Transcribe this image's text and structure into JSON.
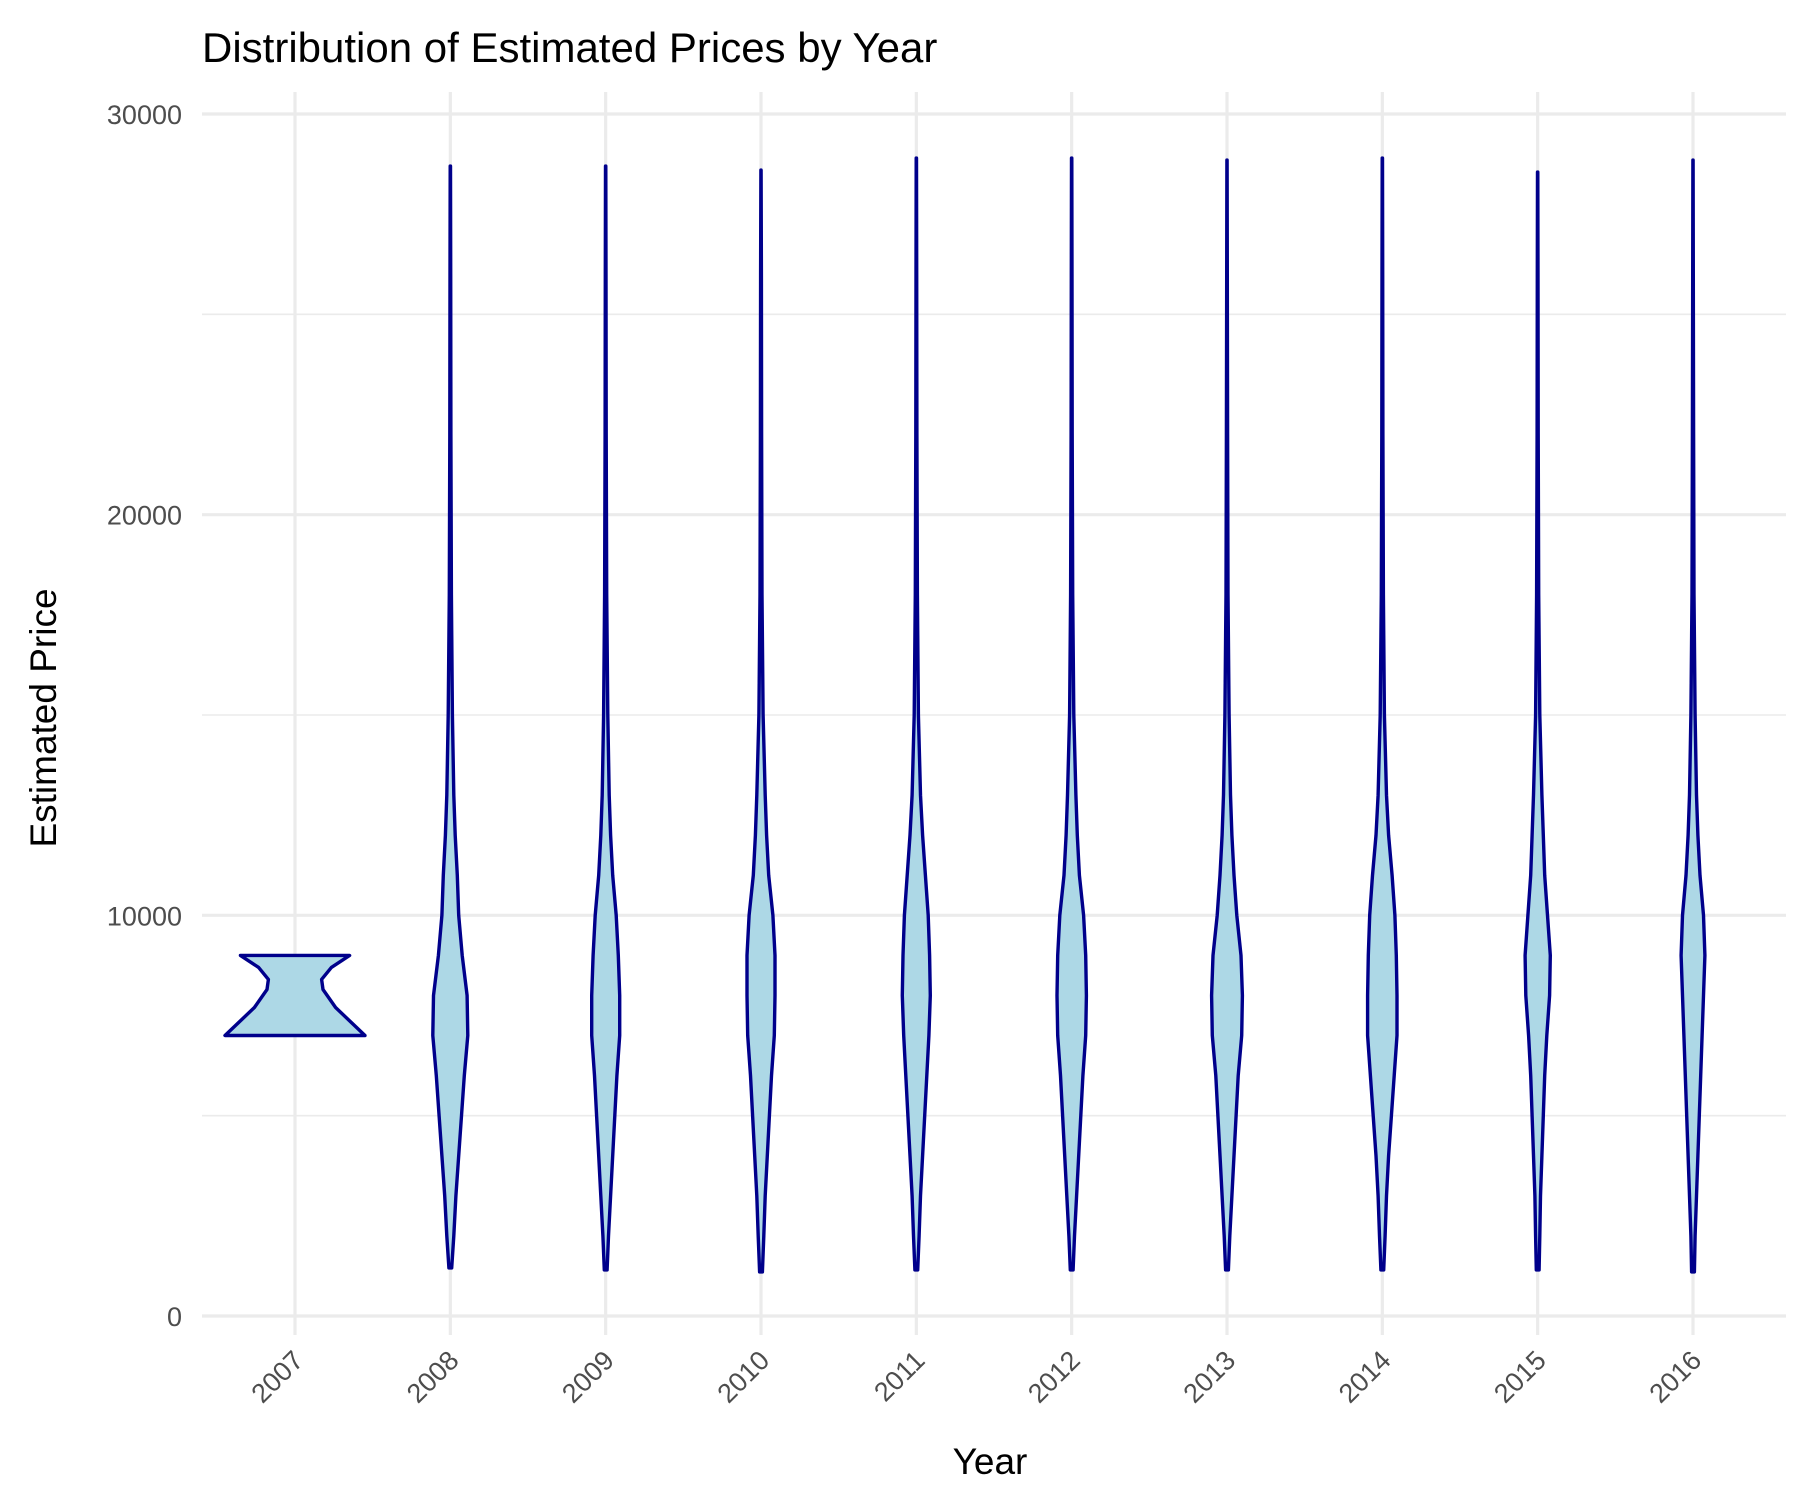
{
  "chart_data": {
    "type": "violin",
    "title": "Distribution of Estimated Prices by Year",
    "xlabel": "Year",
    "ylabel": "Estimated Price",
    "categories": [
      "2007",
      "2008",
      "2009",
      "2010",
      "2011",
      "2012",
      "2013",
      "2014",
      "2015",
      "2016"
    ],
    "ylim": [
      -1000,
      30500
    ],
    "yticks": [
      0,
      10000,
      20000,
      30000
    ],
    "ytick_labels": [
      "0",
      "10000",
      "20000",
      "30000"
    ],
    "grid": true,
    "colors": {
      "fill": "#add8e6",
      "outline": "#00008b"
    },
    "violins": [
      {
        "year": "2007",
        "min": 7000,
        "max": 9000,
        "profile": [
          [
            7000,
            1.0
          ],
          [
            7300,
            0.82
          ],
          [
            7700,
            0.58
          ],
          [
            8000,
            0.46
          ],
          [
            8150,
            0.4
          ],
          [
            8400,
            0.38
          ],
          [
            8700,
            0.52
          ],
          [
            9000,
            0.78
          ]
        ]
      },
      {
        "year": "2008",
        "min": 1200,
        "max": 28700,
        "profile": [
          [
            1200,
            0.02
          ],
          [
            2000,
            0.05
          ],
          [
            3000,
            0.08
          ],
          [
            4000,
            0.12
          ],
          [
            5000,
            0.16
          ],
          [
            6000,
            0.2
          ],
          [
            7000,
            0.25
          ],
          [
            8000,
            0.24
          ],
          [
            9000,
            0.17
          ],
          [
            10000,
            0.12
          ],
          [
            11000,
            0.1
          ],
          [
            12000,
            0.07
          ],
          [
            13000,
            0.05
          ],
          [
            15000,
            0.03
          ],
          [
            18000,
            0.015
          ],
          [
            22000,
            0.008
          ],
          [
            26000,
            0.005
          ],
          [
            28700,
            0.002
          ]
        ]
      },
      {
        "year": "2009",
        "min": 1150,
        "max": 28700,
        "profile": [
          [
            1150,
            0.02
          ],
          [
            2000,
            0.04
          ],
          [
            3000,
            0.07
          ],
          [
            4000,
            0.1
          ],
          [
            5000,
            0.13
          ],
          [
            6000,
            0.16
          ],
          [
            7000,
            0.2
          ],
          [
            8000,
            0.2
          ],
          [
            9000,
            0.18
          ],
          [
            10000,
            0.15
          ],
          [
            11000,
            0.1
          ],
          [
            12000,
            0.07
          ],
          [
            13000,
            0.05
          ],
          [
            15000,
            0.03
          ],
          [
            18000,
            0.015
          ],
          [
            22000,
            0.008
          ],
          [
            26000,
            0.005
          ],
          [
            28700,
            0.002
          ]
        ]
      },
      {
        "year": "2010",
        "min": 1100,
        "max": 28600,
        "profile": [
          [
            1100,
            0.02
          ],
          [
            2000,
            0.04
          ],
          [
            3000,
            0.06
          ],
          [
            4000,
            0.09
          ],
          [
            5000,
            0.12
          ],
          [
            6000,
            0.15
          ],
          [
            7000,
            0.19
          ],
          [
            8000,
            0.2
          ],
          [
            9000,
            0.2
          ],
          [
            10000,
            0.17
          ],
          [
            11000,
            0.11
          ],
          [
            12000,
            0.08
          ],
          [
            13000,
            0.06
          ],
          [
            15000,
            0.03
          ],
          [
            18000,
            0.015
          ],
          [
            22000,
            0.008
          ],
          [
            26000,
            0.005
          ],
          [
            28600,
            0.002
          ]
        ]
      },
      {
        "year": "2011",
        "min": 1150,
        "max": 28900,
        "profile": [
          [
            1150,
            0.02
          ],
          [
            2000,
            0.04
          ],
          [
            3000,
            0.06
          ],
          [
            4000,
            0.09
          ],
          [
            5000,
            0.12
          ],
          [
            6000,
            0.15
          ],
          [
            7000,
            0.18
          ],
          [
            8000,
            0.2
          ],
          [
            9000,
            0.19
          ],
          [
            10000,
            0.17
          ],
          [
            11000,
            0.13
          ],
          [
            12000,
            0.09
          ],
          [
            13000,
            0.06
          ],
          [
            15000,
            0.03
          ],
          [
            18000,
            0.015
          ],
          [
            22000,
            0.008
          ],
          [
            26000,
            0.005
          ],
          [
            28900,
            0.002
          ]
        ]
      },
      {
        "year": "2012",
        "min": 1150,
        "max": 28900,
        "profile": [
          [
            1150,
            0.02
          ],
          [
            2000,
            0.04
          ],
          [
            3000,
            0.07
          ],
          [
            4000,
            0.1
          ],
          [
            5000,
            0.13
          ],
          [
            6000,
            0.16
          ],
          [
            7000,
            0.2
          ],
          [
            8000,
            0.21
          ],
          [
            9000,
            0.2
          ],
          [
            10000,
            0.17
          ],
          [
            11000,
            0.11
          ],
          [
            12000,
            0.08
          ],
          [
            13000,
            0.06
          ],
          [
            15000,
            0.03
          ],
          [
            18000,
            0.015
          ],
          [
            22000,
            0.008
          ],
          [
            26000,
            0.005
          ],
          [
            28900,
            0.002
          ]
        ]
      },
      {
        "year": "2013",
        "min": 1150,
        "max": 28850,
        "profile": [
          [
            1150,
            0.02
          ],
          [
            2000,
            0.04
          ],
          [
            3000,
            0.07
          ],
          [
            4000,
            0.1
          ],
          [
            5000,
            0.13
          ],
          [
            6000,
            0.16
          ],
          [
            7000,
            0.21
          ],
          [
            8000,
            0.22
          ],
          [
            9000,
            0.2
          ],
          [
            10000,
            0.14
          ],
          [
            11000,
            0.1
          ],
          [
            12000,
            0.07
          ],
          [
            13000,
            0.05
          ],
          [
            15000,
            0.03
          ],
          [
            18000,
            0.015
          ],
          [
            22000,
            0.008
          ],
          [
            26000,
            0.005
          ],
          [
            28850,
            0.002
          ]
        ]
      },
      {
        "year": "2014",
        "min": 1150,
        "max": 28900,
        "profile": [
          [
            1150,
            0.02
          ],
          [
            2000,
            0.04
          ],
          [
            3000,
            0.06
          ],
          [
            4000,
            0.09
          ],
          [
            5000,
            0.13
          ],
          [
            6000,
            0.17
          ],
          [
            7000,
            0.21
          ],
          [
            8000,
            0.21
          ],
          [
            9000,
            0.2
          ],
          [
            10000,
            0.18
          ],
          [
            11000,
            0.14
          ],
          [
            12000,
            0.09
          ],
          [
            13000,
            0.06
          ],
          [
            15000,
            0.03
          ],
          [
            18000,
            0.015
          ],
          [
            22000,
            0.008
          ],
          [
            26000,
            0.005
          ],
          [
            28900,
            0.002
          ]
        ]
      },
      {
        "year": "2015",
        "min": 1150,
        "max": 28550,
        "profile": [
          [
            1150,
            0.02
          ],
          [
            2000,
            0.03
          ],
          [
            3000,
            0.04
          ],
          [
            4000,
            0.06
          ],
          [
            5000,
            0.08
          ],
          [
            6000,
            0.1
          ],
          [
            7000,
            0.13
          ],
          [
            8000,
            0.17
          ],
          [
            9000,
            0.18
          ],
          [
            10000,
            0.14
          ],
          [
            11000,
            0.1
          ],
          [
            12000,
            0.08
          ],
          [
            13000,
            0.06
          ],
          [
            15000,
            0.03
          ],
          [
            18000,
            0.015
          ],
          [
            22000,
            0.008
          ],
          [
            26000,
            0.005
          ],
          [
            28550,
            0.002
          ]
        ]
      },
      {
        "year": "2016",
        "min": 1100,
        "max": 28850,
        "profile": [
          [
            1100,
            0.02
          ],
          [
            2000,
            0.03
          ],
          [
            3000,
            0.05
          ],
          [
            4000,
            0.07
          ],
          [
            5000,
            0.09
          ],
          [
            6000,
            0.11
          ],
          [
            7000,
            0.13
          ],
          [
            8000,
            0.15
          ],
          [
            9000,
            0.17
          ],
          [
            10000,
            0.15
          ],
          [
            11000,
            0.1
          ],
          [
            12000,
            0.07
          ],
          [
            13000,
            0.05
          ],
          [
            15000,
            0.03
          ],
          [
            18000,
            0.015
          ],
          [
            22000,
            0.008
          ],
          [
            26000,
            0.005
          ],
          [
            28850,
            0.002
          ]
        ]
      }
    ]
  }
}
